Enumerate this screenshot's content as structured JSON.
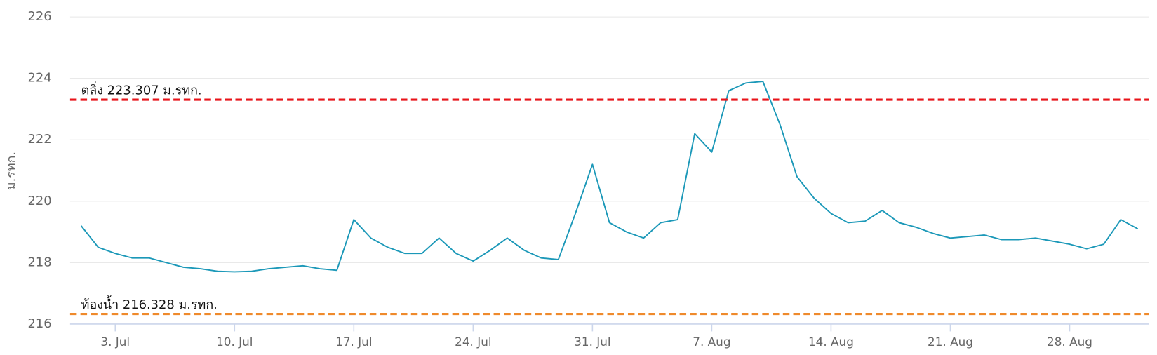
{
  "chart_data": {
    "type": "line",
    "y_label": "ม.รทก.",
    "categories": [
      null,
      null,
      "3. Jul",
      null,
      null,
      null,
      null,
      null,
      null,
      "10. Jul",
      null,
      null,
      null,
      null,
      null,
      null,
      "17. Jul",
      null,
      null,
      null,
      null,
      null,
      null,
      "24. Jul",
      null,
      null,
      null,
      null,
      null,
      null,
      "31. Jul",
      null,
      null,
      null,
      null,
      null,
      null,
      "7. Aug",
      null,
      null,
      null,
      null,
      null,
      null,
      "14. Aug",
      null,
      null,
      null,
      null,
      null,
      null,
      "21. Aug",
      null,
      null,
      null,
      null,
      null,
      null,
      "28. Aug",
      null,
      null,
      null,
      null
    ],
    "values": [
      219.2,
      218.5,
      218.3,
      218.15,
      218.15,
      218.0,
      217.85,
      217.8,
      217.72,
      217.7,
      217.72,
      217.8,
      217.85,
      217.9,
      217.8,
      217.75,
      219.4,
      218.8,
      218.5,
      218.3,
      218.3,
      218.8,
      218.3,
      218.05,
      218.4,
      218.8,
      218.4,
      218.15,
      218.1,
      219.6,
      221.2,
      219.3,
      219.0,
      218.8,
      219.3,
      219.4,
      222.2,
      221.6,
      223.6,
      223.85,
      223.9,
      222.5,
      220.8,
      220.1,
      219.6,
      219.3,
      219.35,
      219.7,
      219.3,
      219.15,
      218.95,
      218.8,
      218.85,
      218.9,
      218.75,
      218.75,
      218.8,
      218.7,
      218.6,
      218.45,
      218.6,
      219.4,
      219.1
    ],
    "color": "#1b98b8",
    "ylim": [
      216,
      226
    ],
    "yticks": [
      216,
      218,
      220,
      222,
      224,
      226
    ],
    "grid": true,
    "reference_lines": [
      {
        "value": 223.307,
        "label": "ตลิ่ง 223.307 ม.รทก.",
        "color": "#e8141a"
      },
      {
        "value": 216.328,
        "label": "ท้องน้ำ 216.328 ม.รทก.",
        "color": "#ef8a2c"
      }
    ]
  }
}
